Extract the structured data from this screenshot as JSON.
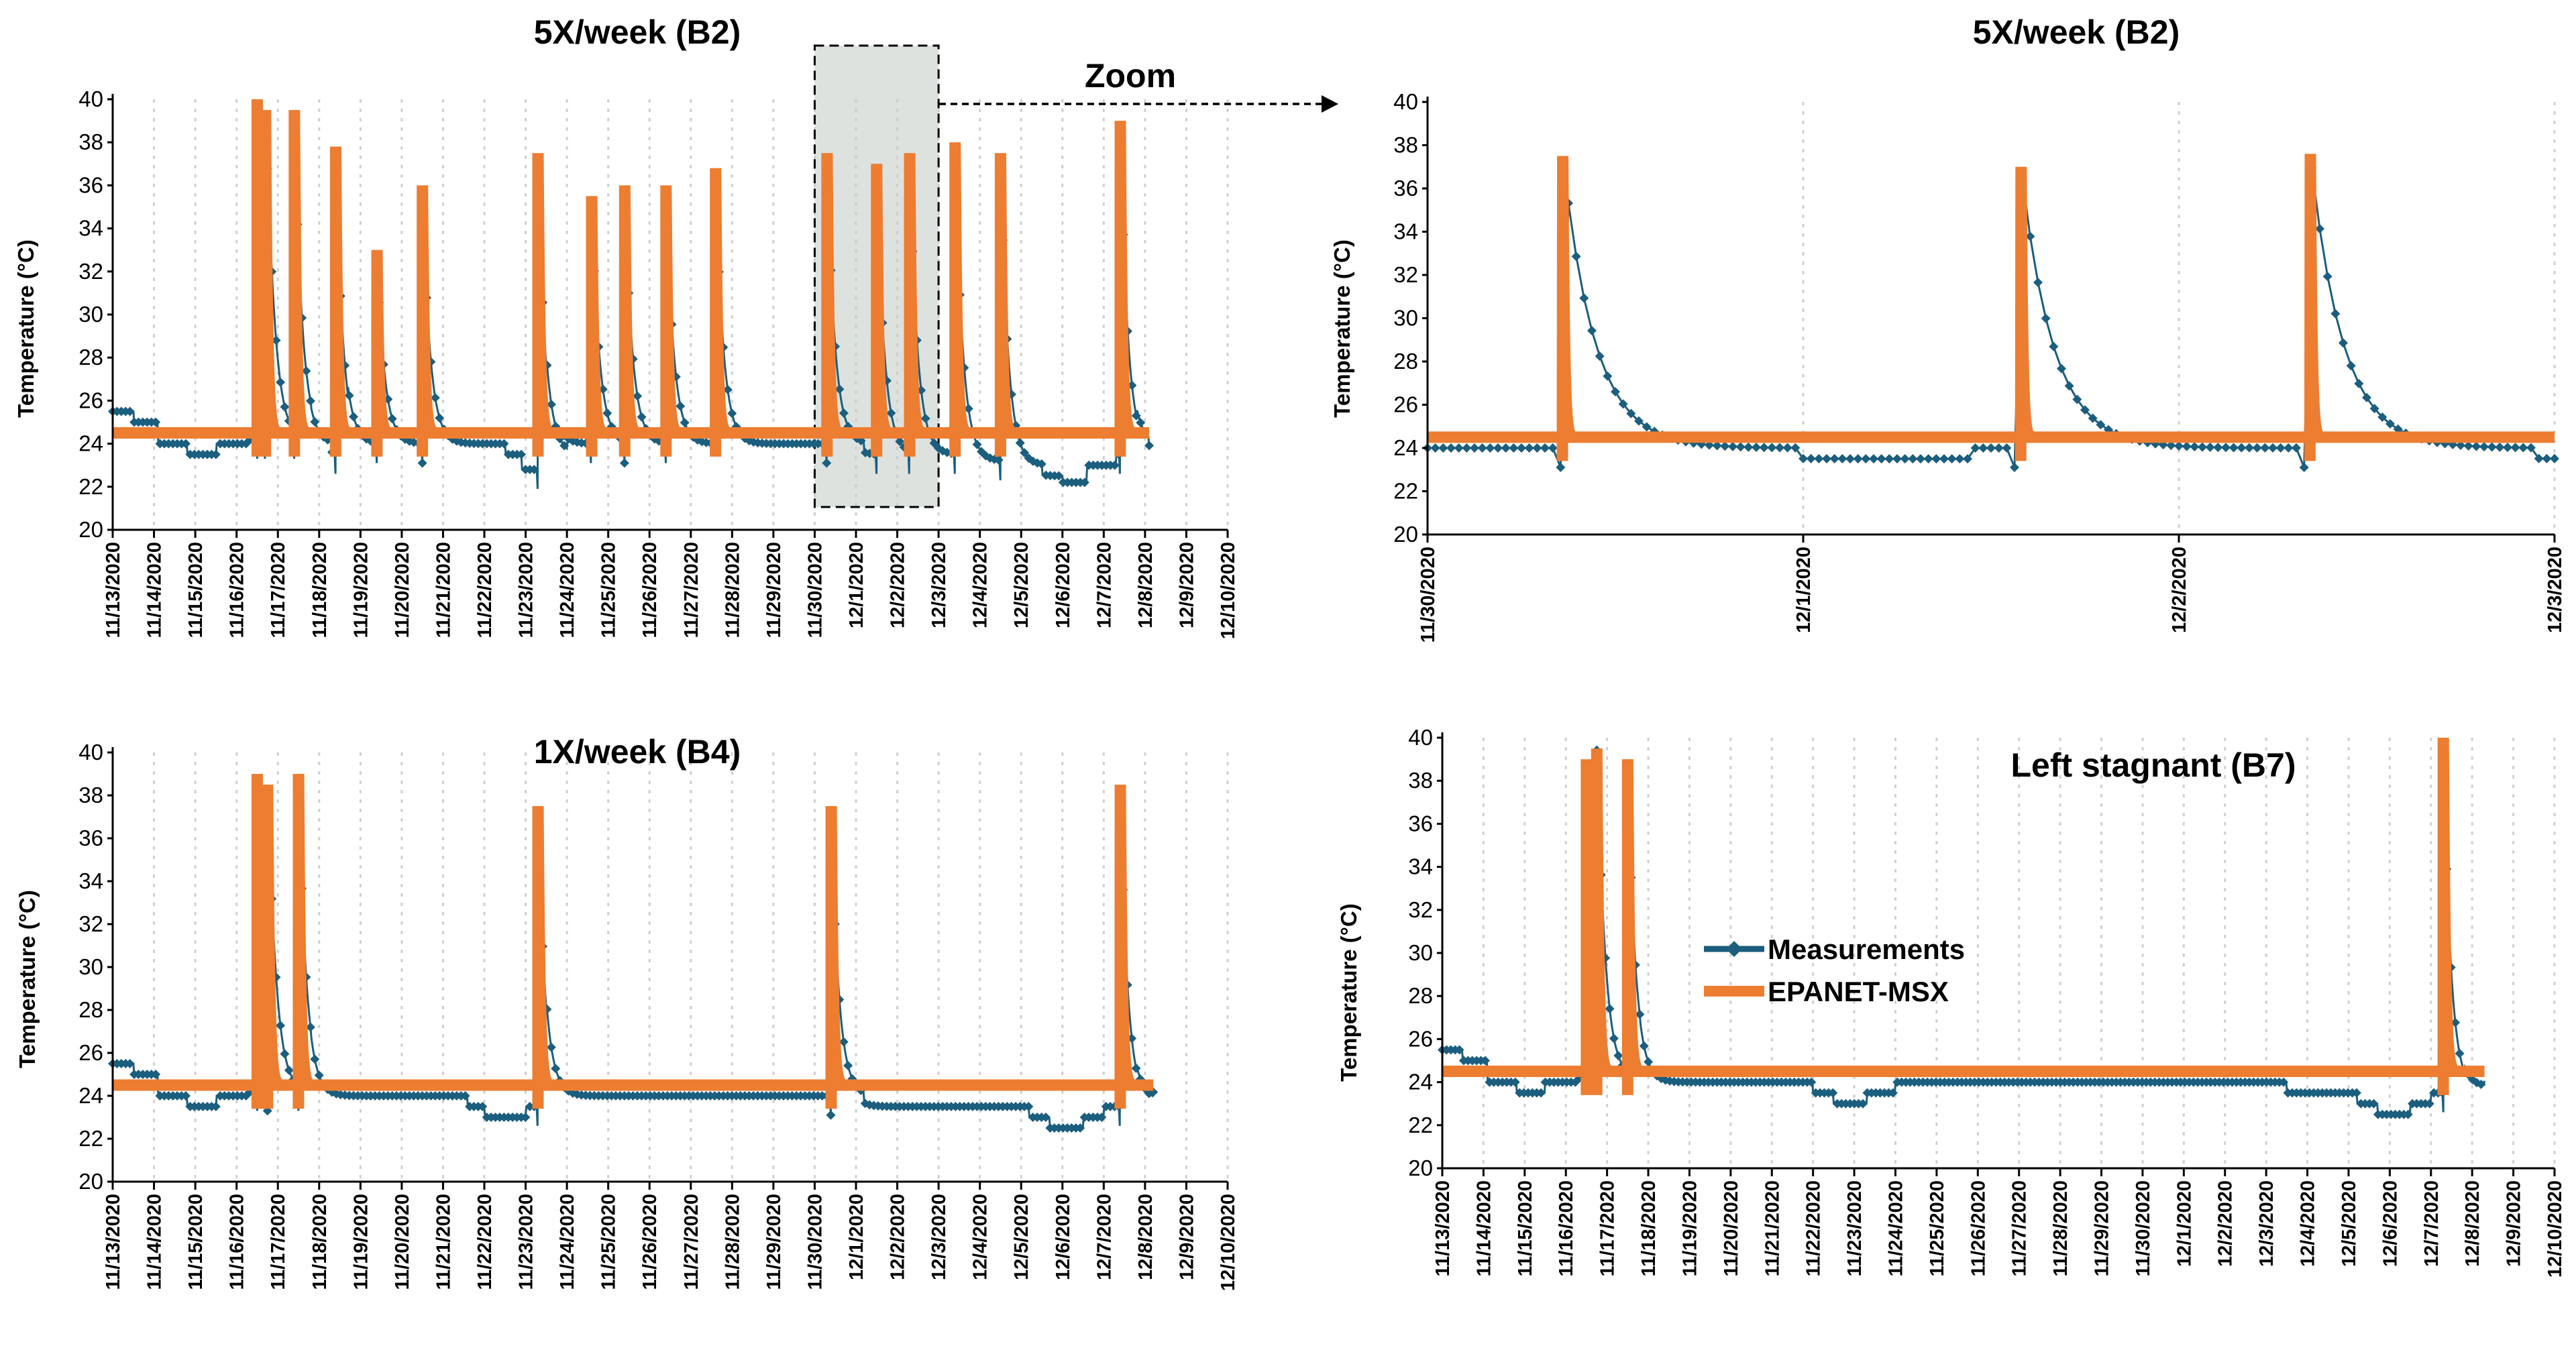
{
  "colors": {
    "measurements": "#1b5e7e",
    "model": "#ed7d31",
    "grid": "#d0d0d0",
    "zoom_box": "#c6cfc9"
  },
  "annotation": {
    "zoom_label": "Zoom"
  },
  "legend": {
    "items": [
      "Measurements",
      "EPANET-MSX"
    ]
  },
  "chart_data": [
    {
      "id": "b2",
      "type": "line",
      "title": "5X/week (B2)",
      "ylabel": "Temperature (°C)",
      "ylim": [
        20,
        40
      ],
      "yticks": [
        "20",
        "22",
        "24",
        "26",
        "28",
        "30",
        "32",
        "34",
        "36",
        "38",
        "40"
      ],
      "xlim": [
        0,
        27
      ],
      "xticks": [
        "11/13/2020",
        "11/14/2020",
        "11/15/2020",
        "11/16/2020",
        "11/17/2020",
        "11/18/2020",
        "11/19/2020",
        "11/20/2020",
        "11/21/2020",
        "11/22/2020",
        "11/23/2020",
        "11/24/2020",
        "11/25/2020",
        "11/26/2020",
        "11/27/2020",
        "11/28/2020",
        "11/29/2020",
        "11/30/2020",
        "12/1/2020",
        "12/2/2020",
        "12/3/2020",
        "12/4/2020",
        "12/5/2020",
        "12/6/2020",
        "12/7/2020",
        "12/8/2020",
        "12/9/2020",
        "12/10/2020"
      ],
      "baseline_model": 24.5,
      "data_end": 25.1,
      "meas_base": [
        [
          0,
          25.5
        ],
        [
          0.5,
          25
        ],
        [
          1.1,
          24
        ],
        [
          1.8,
          23.5
        ],
        [
          2.5,
          24
        ],
        [
          3.3,
          24.2
        ],
        [
          4.8,
          24
        ],
        [
          5.3,
          23.5
        ],
        [
          5.7,
          24
        ],
        [
          9.5,
          23.5
        ],
        [
          9.9,
          22.8
        ],
        [
          10.5,
          23.5
        ],
        [
          11,
          24
        ],
        [
          17.8,
          24
        ],
        [
          18.2,
          23.5
        ],
        [
          20.5,
          23.2
        ],
        [
          21.5,
          23
        ],
        [
          22.5,
          22.5
        ],
        [
          23,
          22.2
        ],
        [
          23.6,
          23
        ],
        [
          24.3,
          23.5
        ],
        [
          24.8,
          24
        ],
        [
          25.1,
          23.6
        ]
      ],
      "events": [
        [
          3.5,
          40
        ],
        [
          3.7,
          39.5
        ],
        [
          4.4,
          39.5
        ],
        [
          5.4,
          37.8
        ],
        [
          6.4,
          33
        ],
        [
          7.5,
          36
        ],
        [
          10.3,
          37.5
        ],
        [
          11.6,
          35.5
        ],
        [
          12.4,
          36
        ],
        [
          13.4,
          36
        ],
        [
          14.6,
          36.8
        ],
        [
          17.3,
          37.5
        ],
        [
          18.5,
          37
        ],
        [
          19.3,
          37.5
        ],
        [
          20.4,
          38
        ],
        [
          21.5,
          37.5
        ],
        [
          24.4,
          39
        ]
      ],
      "zoom_range": [
        17,
        20
      ]
    },
    {
      "id": "b2zoom",
      "type": "line",
      "title": "5X/week (B2)",
      "ylabel": "Temperature (°C)",
      "ylim": [
        20,
        40
      ],
      "yticks": [
        "20",
        "22",
        "24",
        "26",
        "28",
        "30",
        "32",
        "34",
        "36",
        "38",
        "40"
      ],
      "xlim": [
        0,
        3
      ],
      "xticks": [
        "11/30/2020",
        "12/1/2020",
        "12/2/2020",
        "12/3/2020"
      ],
      "baseline_model": 24.5,
      "data_end": 3,
      "meas_base": [
        [
          0,
          24
        ],
        [
          0.85,
          24
        ],
        [
          1.0,
          23.5
        ],
        [
          1.45,
          24
        ],
        [
          2.0,
          24
        ],
        [
          2.95,
          23.5
        ]
      ],
      "events": [
        [
          0.36,
          37.5
        ],
        [
          1.58,
          37
        ],
        [
          2.35,
          37.6
        ]
      ]
    },
    {
      "id": "b4",
      "type": "line",
      "title": "1X/week (B4)",
      "ylabel": "Temperature (°C)",
      "ylim": [
        20,
        40
      ],
      "yticks": [
        "20",
        "22",
        "24",
        "26",
        "28",
        "30",
        "32",
        "34",
        "36",
        "38",
        "40"
      ],
      "xlim": [
        0,
        27
      ],
      "xticks": [
        "11/13/2020",
        "11/14/2020",
        "11/15/2020",
        "11/16/2020",
        "11/17/2020",
        "11/18/2020",
        "11/19/2020",
        "11/20/2020",
        "11/21/2020",
        "11/22/2020",
        "11/23/2020",
        "11/24/2020",
        "11/25/2020",
        "11/26/2020",
        "11/27/2020",
        "11/28/2020",
        "11/29/2020",
        "11/30/2020",
        "12/1/2020",
        "12/2/2020",
        "12/3/2020",
        "12/4/2020",
        "12/5/2020",
        "12/6/2020",
        "12/7/2020",
        "12/8/2020",
        "12/9/2020",
        "12/10/2020"
      ],
      "baseline_model": 24.5,
      "data_end": 25.2,
      "meas_base": [
        [
          0,
          25.5
        ],
        [
          0.5,
          25
        ],
        [
          1.1,
          24
        ],
        [
          1.8,
          23.5
        ],
        [
          2.5,
          24
        ],
        [
          3.3,
          24.2
        ],
        [
          4.8,
          24
        ],
        [
          8,
          24
        ],
        [
          8.6,
          23.5
        ],
        [
          9,
          23
        ],
        [
          10,
          23.5
        ],
        [
          10.5,
          24
        ],
        [
          17.8,
          24
        ],
        [
          18.2,
          23.5
        ],
        [
          19.6,
          23.5
        ],
        [
          21.5,
          23.5
        ],
        [
          22.2,
          23
        ],
        [
          22.7,
          22.5
        ],
        [
          23.5,
          23
        ],
        [
          24,
          23.5
        ],
        [
          24.8,
          23.8
        ],
        [
          25.2,
          24
        ]
      ],
      "events": [
        [
          3.5,
          39
        ],
        [
          3.75,
          38.5
        ],
        [
          4.5,
          39
        ],
        [
          10.3,
          37.5
        ],
        [
          17.4,
          37.5
        ],
        [
          24.4,
          38.5
        ]
      ]
    },
    {
      "id": "b7",
      "type": "line",
      "title": "Left stagnant (B7)",
      "ylabel": "Temperature (°C)",
      "ylim": [
        20,
        40
      ],
      "yticks": [
        "20",
        "22",
        "24",
        "26",
        "28",
        "30",
        "32",
        "34",
        "36",
        "38",
        "40"
      ],
      "xlim": [
        0,
        27
      ],
      "xticks": [
        "11/13/2020",
        "11/14/2020",
        "11/15/2020",
        "11/16/2020",
        "11/17/2020",
        "11/18/2020",
        "11/19/2020",
        "11/20/2020",
        "11/21/2020",
        "11/22/2020",
        "11/23/2020",
        "11/24/2020",
        "11/25/2020",
        "11/26/2020",
        "11/27/2020",
        "11/28/2020",
        "11/29/2020",
        "11/30/2020",
        "12/1/2020",
        "12/2/2020",
        "12/3/2020",
        "12/4/2020",
        "12/5/2020",
        "12/6/2020",
        "12/7/2020",
        "12/8/2020",
        "12/9/2020",
        "12/10/2020"
      ],
      "baseline_model": 24.5,
      "data_end": 25.3,
      "meas_base": [
        [
          0,
          25.5
        ],
        [
          0.5,
          25
        ],
        [
          1.1,
          24
        ],
        [
          1.8,
          23.5
        ],
        [
          2.5,
          24
        ],
        [
          3.3,
          24.2
        ],
        [
          4.8,
          24
        ],
        [
          8,
          24
        ],
        [
          8.6,
          24
        ],
        [
          9,
          23.5
        ],
        [
          9.5,
          23
        ],
        [
          10.3,
          23.5
        ],
        [
          11,
          24
        ],
        [
          18,
          24
        ],
        [
          20.5,
          23.5
        ],
        [
          21.5,
          23.5
        ],
        [
          22.2,
          23
        ],
        [
          22.7,
          22.5
        ],
        [
          23.5,
          23
        ],
        [
          24,
          23.5
        ],
        [
          24.8,
          23.8
        ],
        [
          25.3,
          24
        ]
      ],
      "events": [
        [
          3.5,
          39
        ],
        [
          3.75,
          39.5
        ],
        [
          4.5,
          39
        ],
        [
          24.3,
          40
        ]
      ]
    }
  ]
}
